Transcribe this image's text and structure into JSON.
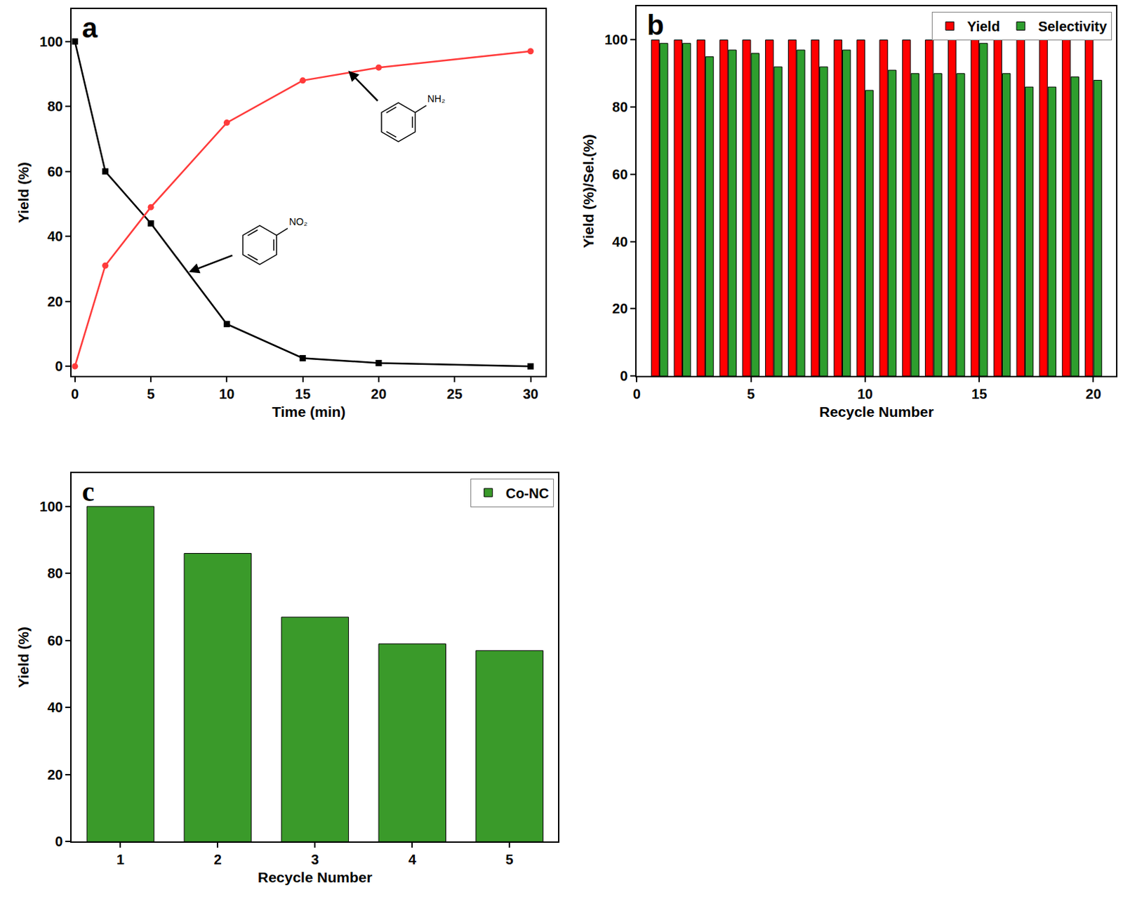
{
  "chart_data": [
    {
      "panel_label": "a",
      "type": "line",
      "x_label": "Time (min)",
      "y_label": "Yield (%)",
      "x": [
        0,
        2,
        5,
        10,
        15,
        20,
        30
      ],
      "series": [
        {
          "color": "#000000",
          "marker": "square",
          "values": [
            100,
            60,
            44,
            13,
            2.5,
            1,
            0
          ]
        },
        {
          "color": "#ff3b3b",
          "marker": "circle",
          "values": [
            0,
            31,
            49,
            75,
            88,
            92,
            97
          ]
        }
      ],
      "annotations": [
        {
          "text": "NH₂",
          "x": 18,
          "y": 91
        },
        {
          "text": "NO₂",
          "x": 7.5,
          "y": 29
        }
      ],
      "xlim": [
        -0.2,
        31
      ],
      "xticks": [
        0,
        5,
        10,
        15,
        20,
        25,
        30
      ],
      "ylim": [
        -3,
        110
      ],
      "yticks": [
        0,
        20,
        40,
        60,
        80,
        100
      ]
    },
    {
      "panel_label": "b",
      "type": "bar",
      "x_label": "Recycle Number",
      "y_label": "Yield (%)/Sel.(%)",
      "x": [
        1,
        2,
        3,
        4,
        5,
        6,
        7,
        8,
        9,
        10,
        11,
        12,
        13,
        14,
        15,
        16,
        17,
        18,
        19,
        20
      ],
      "series": [
        {
          "name": "Yield",
          "color": "#ff0000",
          "values": [
            100,
            100,
            100,
            100,
            100,
            100,
            100,
            100,
            100,
            100,
            100,
            100,
            100,
            100,
            100,
            100,
            100,
            100,
            100,
            100
          ]
        },
        {
          "name": "Selectivity",
          "color": "#2e9e2e",
          "values": [
            99,
            99,
            95,
            97,
            96,
            92,
            97,
            92,
            97,
            85,
            91,
            90,
            90,
            90,
            99,
            90,
            86,
            86,
            89,
            88
          ]
        }
      ],
      "legend": "top right",
      "xlim": [
        0,
        21
      ],
      "xticks": [
        0,
        5,
        10,
        15,
        20
      ],
      "ylim": [
        0,
        110
      ],
      "yticks": [
        0,
        20,
        40,
        60,
        80,
        100
      ]
    },
    {
      "panel_label": "c",
      "type": "bar",
      "x_label": "Recycle Number",
      "y_label": "Yield (%)",
      "categories": [
        "1",
        "2",
        "3",
        "4",
        "5"
      ],
      "series": [
        {
          "name": "Co-NC",
          "color": "#3a9a2a",
          "values": [
            100,
            86,
            67,
            59,
            57
          ]
        }
      ],
      "legend": "top right",
      "ylim": [
        0,
        110
      ],
      "yticks": [
        0,
        20,
        40,
        60,
        80,
        100
      ]
    }
  ]
}
